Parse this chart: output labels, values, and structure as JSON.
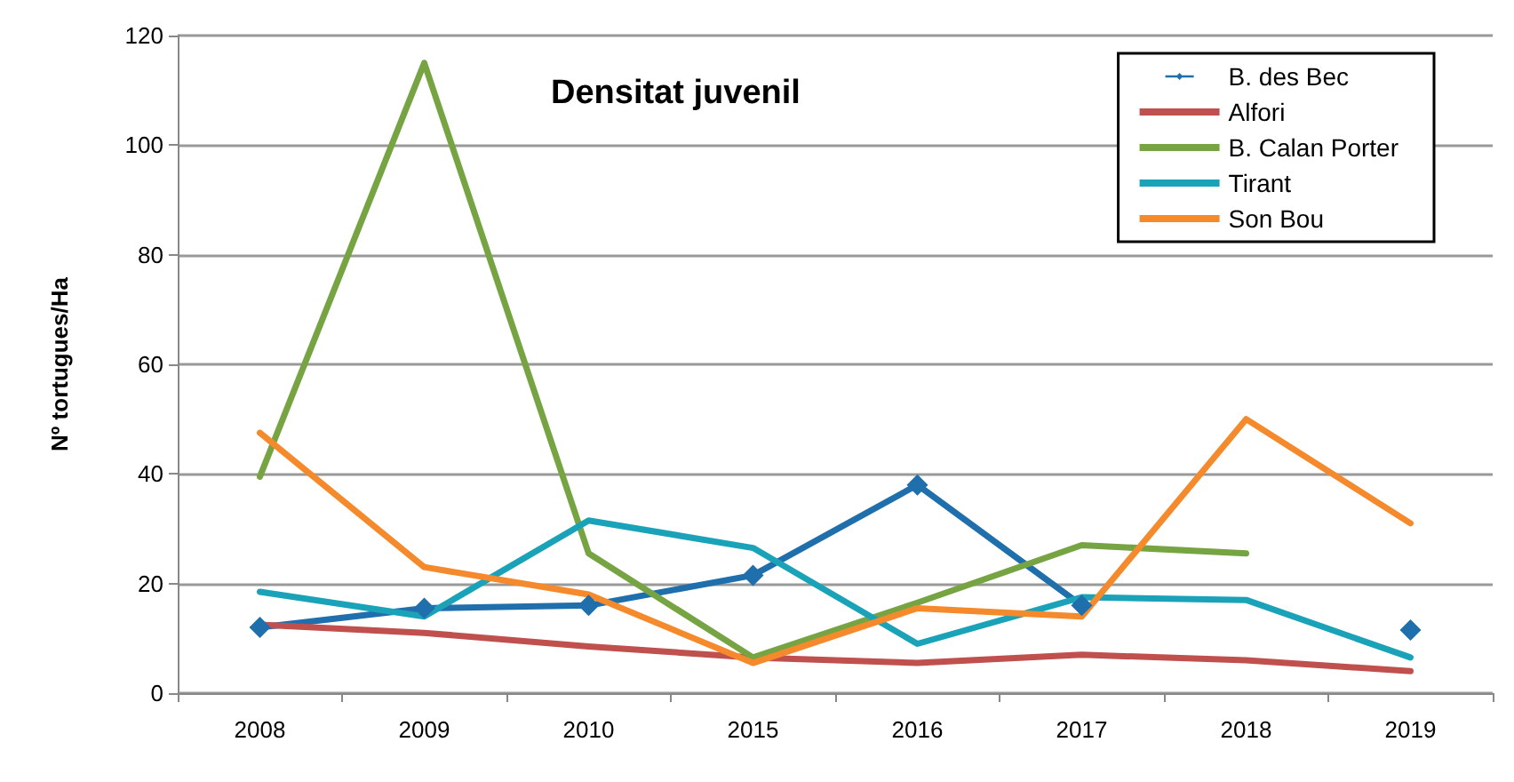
{
  "chart_data": {
    "type": "line",
    "title": "Densitat juvenil",
    "ylabel": "Nº tortugues/Ha",
    "categories": [
      "2008",
      "2009",
      "2010",
      "2015",
      "2016",
      "2017",
      "2018",
      "2019"
    ],
    "series": [
      {
        "name": "B. des Bec",
        "color": "#1f6fad",
        "marker": "diamond",
        "values": [
          12,
          15.5,
          16,
          21.5,
          38,
          16,
          null,
          11.5
        ]
      },
      {
        "name": "Alfori",
        "color": "#c0504d",
        "marker": "none",
        "values": [
          12.5,
          11,
          8.5,
          6.5,
          5.5,
          7,
          6,
          4
        ]
      },
      {
        "name": "B. Calan Porter",
        "color": "#77a443",
        "marker": "none",
        "values": [
          39.5,
          115,
          25.5,
          6.5,
          16.5,
          27,
          25.5,
          null
        ]
      },
      {
        "name": "Tirant",
        "color": "#1aa3b8",
        "marker": "none",
        "values": [
          18.5,
          14,
          31.5,
          26.5,
          9,
          17.5,
          17,
          6.5
        ]
      },
      {
        "name": "Son Bou",
        "color": "#f58a2c",
        "marker": "none",
        "values": [
          47.5,
          23,
          18,
          5.5,
          15.5,
          14,
          50,
          31
        ]
      }
    ],
    "ylim": [
      0,
      120
    ],
    "yticks": [
      0,
      20,
      40,
      60,
      80,
      100,
      120
    ],
    "grid": "y",
    "legend": "top right",
    "line_style": "solid"
  }
}
